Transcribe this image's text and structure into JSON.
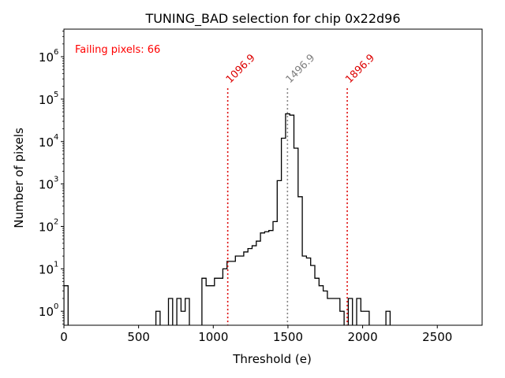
{
  "chart_data": {
    "type": "histogram",
    "title": "TUNING_BAD selection for chip 0x22d96",
    "xlabel": "Threshold (e)",
    "ylabel": "Number of pixels",
    "xlim": [
      0,
      2800
    ],
    "ylim_log10": [
      -0.33,
      6.65
    ],
    "yscale": "log",
    "xticks": [
      0,
      500,
      1000,
      1500,
      2000,
      2500
    ],
    "xtick_labels": [
      "0",
      "500",
      "1000",
      "1500",
      "2000",
      "2500"
    ],
    "yticks_log10": [
      0,
      1,
      2,
      3,
      4,
      5,
      6
    ],
    "ytick_bases": [
      "10",
      "10",
      "10",
      "10",
      "10",
      "10",
      "10"
    ],
    "ytick_exponents": [
      "0",
      "1",
      "2",
      "3",
      "4",
      "5",
      "6"
    ],
    "annotation": "Failing pixels: 66",
    "annotation_color": "#ff0000",
    "bin_width": 28,
    "bins": [
      [
        0,
        28,
        4
      ],
      [
        616,
        644,
        1
      ],
      [
        700,
        728,
        2
      ],
      [
        756,
        784,
        2
      ],
      [
        784,
        812,
        1
      ],
      [
        812,
        840,
        2
      ],
      [
        924,
        952,
        6
      ],
      [
        952,
        980,
        4
      ],
      [
        980,
        1008,
        4
      ],
      [
        1008,
        1036,
        6
      ],
      [
        1036,
        1064,
        6
      ],
      [
        1064,
        1092,
        10
      ],
      [
        1092,
        1120,
        15
      ],
      [
        1120,
        1148,
        15
      ],
      [
        1148,
        1176,
        20
      ],
      [
        1176,
        1204,
        20
      ],
      [
        1204,
        1232,
        25
      ],
      [
        1232,
        1260,
        30
      ],
      [
        1260,
        1288,
        35
      ],
      [
        1288,
        1316,
        45
      ],
      [
        1316,
        1344,
        70
      ],
      [
        1344,
        1372,
        75
      ],
      [
        1372,
        1400,
        80
      ],
      [
        1400,
        1428,
        130
      ],
      [
        1428,
        1456,
        1200
      ],
      [
        1456,
        1484,
        12000
      ],
      [
        1484,
        1512,
        45000
      ],
      [
        1512,
        1540,
        42000
      ],
      [
        1540,
        1568,
        7000
      ],
      [
        1568,
        1596,
        500
      ],
      [
        1596,
        1624,
        20
      ],
      [
        1624,
        1652,
        18
      ],
      [
        1652,
        1680,
        12
      ],
      [
        1680,
        1708,
        6
      ],
      [
        1708,
        1736,
        4
      ],
      [
        1736,
        1764,
        3
      ],
      [
        1764,
        1792,
        2
      ],
      [
        1792,
        1820,
        2
      ],
      [
        1820,
        1848,
        2
      ],
      [
        1848,
        1876,
        1
      ],
      [
        1904,
        1932,
        2
      ],
      [
        1960,
        1988,
        2
      ],
      [
        1988,
        2016,
        1
      ],
      [
        2016,
        2044,
        1
      ],
      [
        2156,
        2184,
        1
      ]
    ],
    "vlines": [
      {
        "x": 1096.9,
        "label": "1096.9",
        "color": "#dd0000",
        "style": "dotted"
      },
      {
        "x": 1496.9,
        "label": "1496.9",
        "color": "#808080",
        "style": "dotted"
      },
      {
        "x": 1896.9,
        "label": "1896.9",
        "color": "#dd0000",
        "style": "dotted"
      }
    ]
  }
}
